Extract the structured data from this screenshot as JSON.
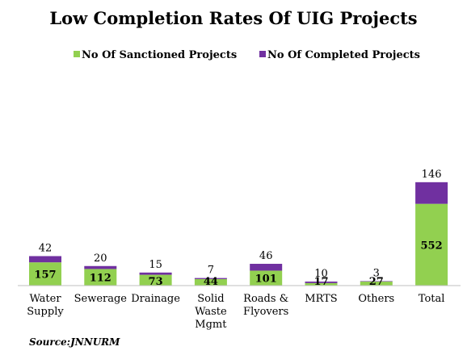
{
  "chart_data": {
    "type": "bar",
    "stacked": true,
    "title": "Low Completion Rates Of UIG Projects",
    "categories": [
      [
        "Water",
        "Supply"
      ],
      [
        "Sewerage"
      ],
      [
        "Drainage"
      ],
      [
        "Solid",
        "Waste",
        "Mgmt"
      ],
      [
        "Roads &",
        "Flyovers"
      ],
      [
        "MRTS"
      ],
      [
        "Others"
      ],
      [
        "Total"
      ]
    ],
    "series": [
      {
        "name": "No Of Sanctioned Projects",
        "color": "#92d050",
        "values": [
          157,
          112,
          73,
          44,
          101,
          17,
          27,
          552
        ]
      },
      {
        "name": "No Of Completed Projects",
        "color": "#7030a0",
        "values": [
          42,
          20,
          15,
          7,
          46,
          10,
          3,
          146
        ]
      }
    ],
    "legend_position": "top",
    "grid": false,
    "source": "Source:JNNURM"
  }
}
